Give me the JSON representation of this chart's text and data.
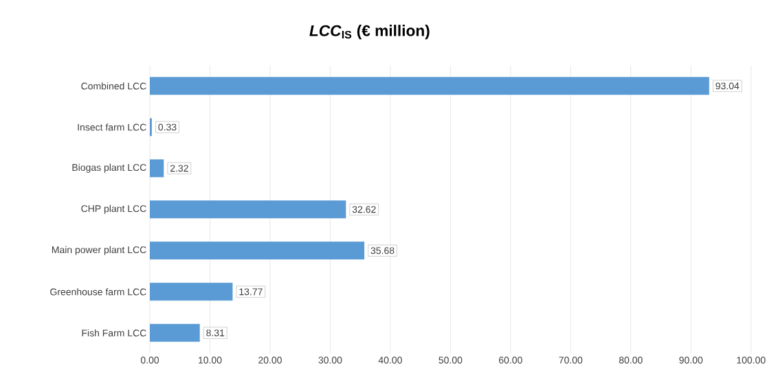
{
  "chart_data": {
    "type": "bar",
    "orientation": "horizontal",
    "title": "*LCC*$_{IS}$ (€ million)",
    "categories": [
      "Combined LCC",
      "Insect farm LCC",
      "Biogas plant LCC",
      "CHP plant LCC",
      "Main power plant LCC",
      "Greenhouse farm LCC",
      "Fish Farm LCC"
    ],
    "values": [
      93.04,
      0.33,
      2.32,
      32.62,
      35.68,
      13.77,
      8.31
    ],
    "color": "#5b9bd5",
    "xlim": [
      0,
      100
    ],
    "xticks": [
      {
        "value": 0,
        "label": "0.00"
      },
      {
        "value": 10,
        "label": "10.00"
      },
      {
        "value": 20,
        "label": "20.00"
      },
      {
        "value": 30,
        "label": "30.00"
      },
      {
        "value": 40,
        "label": "40.00"
      },
      {
        "value": 50,
        "label": "50.00"
      },
      {
        "value": 60,
        "label": "60.00"
      },
      {
        "value": 70,
        "label": "70.00"
      },
      {
        "value": 80,
        "label": "80.00"
      },
      {
        "value": 90,
        "label": "90.00"
      },
      {
        "value": 100,
        "label": "100.00"
      }
    ],
    "grid": "x",
    "data_labels": true
  }
}
